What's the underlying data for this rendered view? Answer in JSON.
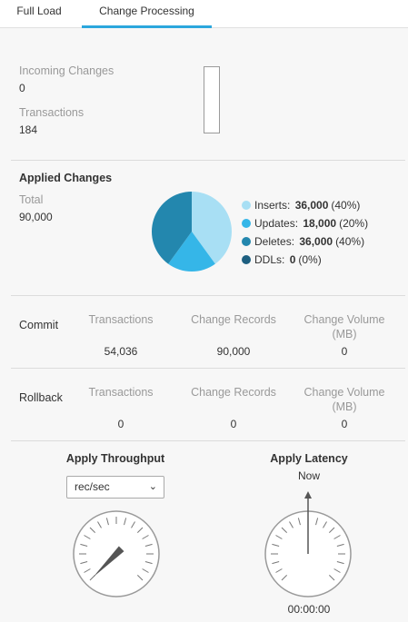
{
  "tabs": [
    {
      "label": "Full Load"
    },
    {
      "label": "Change Processing"
    }
  ],
  "incoming": {
    "label": "Incoming Changes",
    "value": "0",
    "transactions_label": "Transactions",
    "transactions_value": "184"
  },
  "applied": {
    "title": "Applied Changes",
    "total_label": "Total",
    "total_value": "90,000"
  },
  "chart_data": {
    "type": "pie",
    "title": "Applied Changes",
    "categories": [
      "Inserts",
      "Updates",
      "Deletes",
      "DDLs"
    ],
    "values": [
      36000,
      18000,
      36000,
      0
    ],
    "percent_labels": [
      "(40%)",
      "(20%)",
      "(40%)",
      "(0%)"
    ],
    "value_labels": [
      "36,000",
      "18,000",
      "36,000",
      "0"
    ],
    "colors": [
      "#a8dff4",
      "#35b6e8",
      "#2387ae",
      "#1d5f80"
    ]
  },
  "commit": {
    "label": "Commit",
    "columns": [
      "Transactions",
      "Change Records",
      "Change Volume (MB)"
    ],
    "values": [
      "54,036",
      "90,000",
      "0"
    ]
  },
  "rollback": {
    "label": "Rollback",
    "columns": [
      "Transactions",
      "Change Records",
      "Change Volume (MB)"
    ],
    "values": [
      "0",
      "0",
      "0"
    ]
  },
  "throughput": {
    "title": "Apply Throughput",
    "unit_selected": "rec/sec",
    "gauge_fraction": 0.0
  },
  "latency": {
    "title": "Apply Latency",
    "label": "Now",
    "value": "00:00:00"
  },
  "colors": {
    "accent": "#2ba7dd"
  }
}
